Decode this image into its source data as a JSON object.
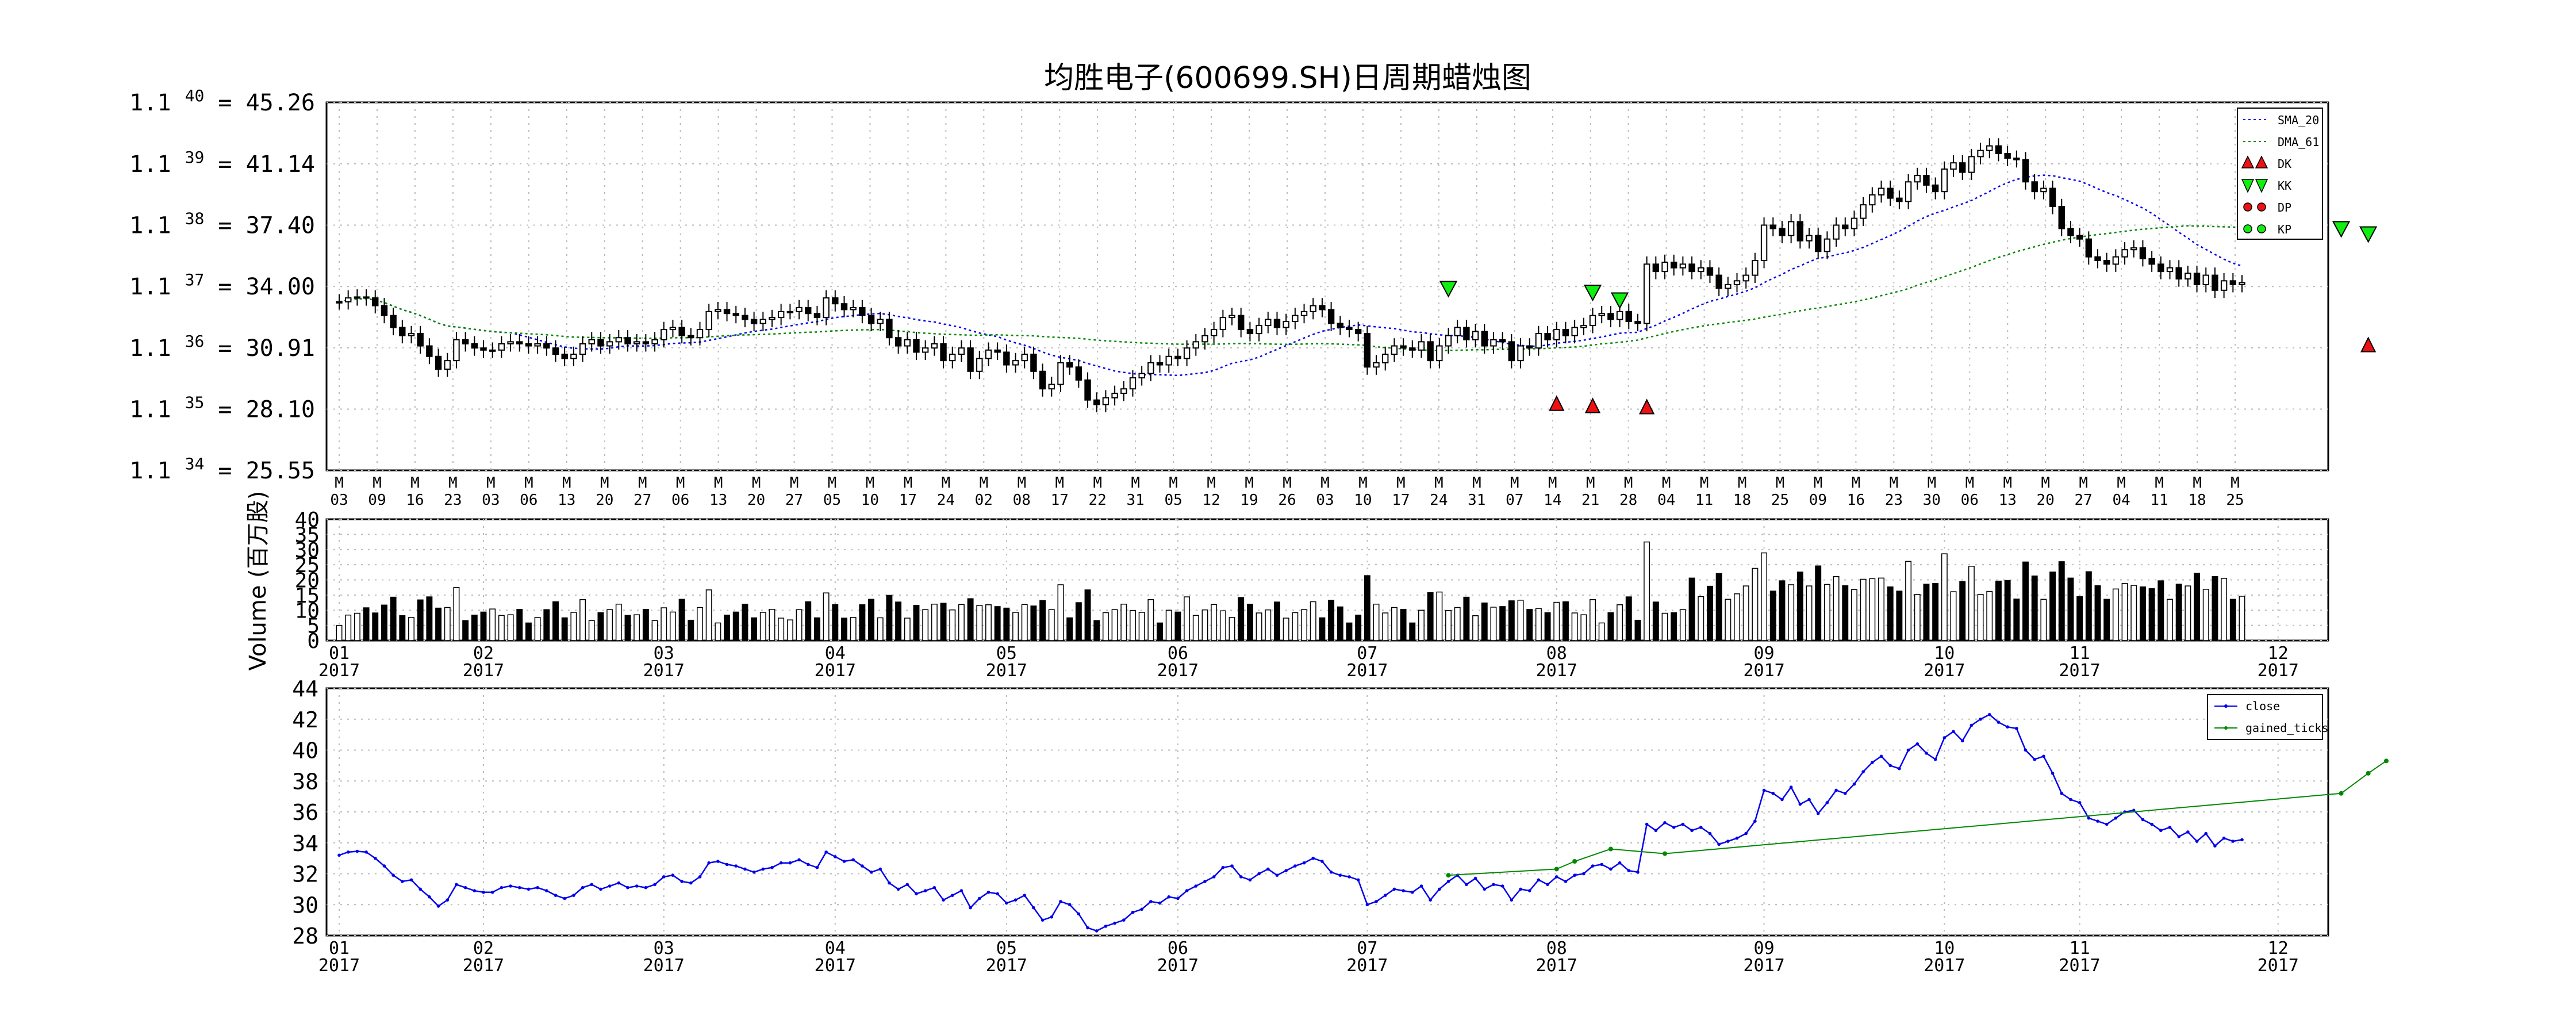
{
  "colors": {
    "sma": "#0000ee",
    "dma": "#008800",
    "close": "#0000ee",
    "gained": "#008800",
    "up_fill": "#ffffff",
    "down_fill": "#000000",
    "buy_marker": "#ee1111",
    "sell_marker": "#11ee11",
    "grid": "#bbbbbb"
  },
  "chart_data": [
    {
      "id": "price",
      "type": "candlestick",
      "title": "均胜电子(600699.SH)日周期蜡烛图",
      "y_scale": "log",
      "ylim": [
        25.55,
        45.26
      ],
      "y_ticks": [
        {
          "base": "1.1",
          "exp": "40",
          "value": "45.26"
        },
        {
          "base": "1.1",
          "exp": "39",
          "value": "41.14"
        },
        {
          "base": "1.1",
          "exp": "38",
          "value": "37.40"
        },
        {
          "base": "1.1",
          "exp": "37",
          "value": "34.00"
        },
        {
          "base": "1.1",
          "exp": "36",
          "value": "30.91"
        },
        {
          "base": "1.1",
          "exp": "35",
          "value": "28.10"
        },
        {
          "base": "1.1",
          "exp": "34",
          "value": "25.55"
        }
      ],
      "x_ticks": [
        "03",
        "09",
        "16",
        "23",
        "03",
        "06",
        "13",
        "20",
        "27",
        "06",
        "13",
        "20",
        "27",
        "05",
        "10",
        "17",
        "24",
        "02",
        "08",
        "17",
        "22",
        "31",
        "05",
        "12",
        "19",
        "26",
        "03",
        "10",
        "17",
        "24",
        "31",
        "07",
        "14",
        "21",
        "28",
        "04",
        "11",
        "18",
        "25",
        "09",
        "16",
        "23",
        "30",
        "06",
        "13",
        "20",
        "27",
        "04",
        "11",
        "18",
        "25"
      ],
      "x_tick_prefix": "M",
      "legend": [
        "SMA_20",
        "DMA_61",
        "DK",
        "KK",
        "DP",
        "KP"
      ],
      "buy_signals": [
        {
          "date": "2017-07-31",
          "price": 28.3
        },
        {
          "date": "2017-08-07",
          "price": 28.2
        },
        {
          "date": "2017-08-16",
          "price": 28.15
        },
        {
          "date": "2017-12-15",
          "price": 31.0
        }
      ],
      "sell_signals": [
        {
          "date": "2017-07-14",
          "price": 33.9
        },
        {
          "date": "2017-08-07",
          "price": 33.7
        },
        {
          "date": "2017-08-11",
          "price": 33.3
        },
        {
          "date": "2017-12-11",
          "price": 37.2
        },
        {
          "date": "2017-12-15",
          "price": 36.9
        }
      ],
      "close_points": [
        33.2,
        33.4,
        33.45,
        33.4,
        33.0,
        32.5,
        31.9,
        31.5,
        31.6,
        31.0,
        30.5,
        29.9,
        30.3,
        31.3,
        31.1,
        30.9,
        30.8,
        30.8,
        31.1,
        31.2,
        31.1,
        31.0,
        31.1,
        30.9,
        30.6,
        30.4,
        30.6,
        31.1,
        31.3,
        31.0,
        31.2,
        31.4,
        31.1,
        31.2,
        31.1,
        31.3,
        31.8,
        31.9,
        31.5,
        31.4,
        31.8,
        32.7,
        32.8,
        32.6,
        32.5,
        32.3,
        32.1,
        32.3,
        32.4,
        32.7,
        32.7,
        32.9,
        32.6,
        32.4,
        33.4,
        33.1,
        32.8,
        32.9,
        32.5,
        32.1,
        32.3,
        31.4,
        31.0,
        31.3,
        30.7,
        30.9,
        31.1,
        30.3,
        30.6,
        30.9,
        29.8,
        30.4,
        30.8,
        30.7,
        30.1,
        30.3,
        30.6,
        29.8,
        29.0,
        29.2,
        30.2,
        30.0,
        29.4,
        28.5,
        28.3,
        28.6,
        28.8,
        29.0,
        29.5,
        29.7,
        30.2,
        30.1,
        30.5,
        30.4,
        30.9,
        31.2,
        31.5,
        31.8,
        32.4,
        32.5,
        31.8,
        31.6,
        32.0,
        32.3,
        31.9,
        32.2,
        32.5,
        32.7,
        33.0,
        32.8,
        32.1,
        31.9,
        31.8,
        31.6,
        30.0,
        30.2,
        30.6,
        31.0,
        30.9,
        30.8,
        31.2,
        30.3,
        31.0,
        31.5,
        31.9,
        31.3,
        31.7,
        31.0,
        31.3,
        31.2,
        30.3,
        31.0,
        30.9,
        31.6,
        31.3,
        31.8,
        31.5,
        31.9,
        32.0,
        32.5,
        32.6,
        32.3,
        32.7,
        32.2,
        32.1,
        35.2,
        34.8,
        35.3,
        35.0,
        35.2,
        34.8,
        35.0,
        34.6,
        33.9,
        34.1,
        34.3,
        34.6,
        35.4,
        37.4,
        37.2,
        36.8,
        37.6,
        36.5,
        36.8,
        35.9,
        36.6,
        37.4,
        37.2,
        37.8,
        38.6,
        39.2,
        39.6,
        39.0,
        38.8,
        40.0,
        40.4,
        39.8,
        39.4,
        40.8,
        41.2,
        40.6,
        41.6,
        42.0,
        42.3,
        41.8,
        41.5,
        41.4,
        40.0,
        39.4,
        39.6,
        38.5,
        37.2,
        36.8,
        36.6,
        35.6,
        35.4,
        35.2,
        35.6,
        36.0,
        36.1,
        35.5,
        35.2,
        34.8,
        35.0,
        34.4,
        34.7,
        34.1,
        34.6,
        33.8,
        34.3,
        34.1,
        34.2
      ]
    },
    {
      "id": "volume",
      "type": "bar",
      "ylabel": "Volume (百万股)",
      "ylim": [
        0,
        40
      ],
      "y_ticks": [
        "40",
        "35",
        "30",
        "25",
        "20",
        "15",
        "10",
        "5",
        "0"
      ],
      "x_ticks": [
        {
          "m": "01",
          "y": "2017"
        },
        {
          "m": "02",
          "y": "2017"
        },
        {
          "m": "03",
          "y": "2017"
        },
        {
          "m": "04",
          "y": "2017"
        },
        {
          "m": "05",
          "y": "2017"
        },
        {
          "m": "06",
          "y": "2017"
        },
        {
          "m": "07",
          "y": "2017"
        },
        {
          "m": "08",
          "y": "2017"
        },
        {
          "m": "09",
          "y": "2017"
        },
        {
          "m": "10",
          "y": "2017"
        },
        {
          "m": "11",
          "y": "2017"
        },
        {
          "m": "12",
          "y": "2017"
        }
      ]
    },
    {
      "id": "close",
      "type": "line",
      "ylim": [
        28,
        44
      ],
      "y_ticks": [
        "44",
        "42",
        "40",
        "38",
        "36",
        "34",
        "32",
        "30",
        "28"
      ],
      "x_ticks": [
        {
          "m": "01",
          "y": "2017"
        },
        {
          "m": "02",
          "y": "2017"
        },
        {
          "m": "03",
          "y": "2017"
        },
        {
          "m": "04",
          "y": "2017"
        },
        {
          "m": "05",
          "y": "2017"
        },
        {
          "m": "06",
          "y": "2017"
        },
        {
          "m": "07",
          "y": "2017"
        },
        {
          "m": "08",
          "y": "2017"
        },
        {
          "m": "09",
          "y": "2017"
        },
        {
          "m": "10",
          "y": "2017"
        },
        {
          "m": "11",
          "y": "2017"
        },
        {
          "m": "12",
          "y": "2017"
        }
      ],
      "legend": [
        "close",
        "gained_ticks"
      ],
      "gained_ticks": [
        {
          "date": "2017-07-14",
          "value": 31.9
        },
        {
          "date": "2017-07-31",
          "value": 32.3
        },
        {
          "date": "2017-08-04",
          "value": 32.8
        },
        {
          "date": "2017-08-10",
          "value": 33.6
        },
        {
          "date": "2017-08-18",
          "value": 33.3
        },
        {
          "date": "2017-12-11",
          "value": 37.2
        },
        {
          "date": "2017-12-15",
          "value": 38.5
        },
        {
          "date": "2017-12-18",
          "value": 39.3
        }
      ]
    }
  ]
}
